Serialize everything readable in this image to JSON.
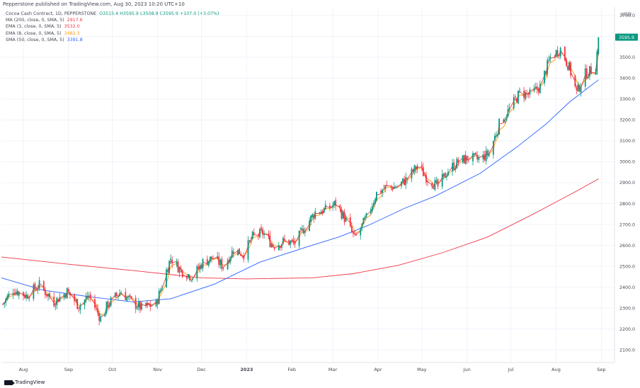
{
  "header": {
    "published": "Pepperstone published on TradingView.com, Aug 30, 2023 10:20 UTC+10"
  },
  "symbol": {
    "name": "Cocoa Cash Contract, 1D, PEPPERSTONE",
    "open": "O3515.4",
    "high": "H3595.9",
    "low": "L3508.9",
    "close": "C3595.9",
    "change": "+107.0 (+3.07%)"
  },
  "indicators": [
    {
      "label": "MA (200, close, 0, SMA, 5)",
      "value": "2917.6",
      "color": "#f23645"
    },
    {
      "label": "EMA (3, close, 0, SMA, 5)",
      "value": "3532.0",
      "color": "#f23645"
    },
    {
      "label": "EMA (8, close, 0, SMA, 5)",
      "value": "3482.3",
      "color": "#ff9800"
    },
    {
      "label": "SMA (50, close, 0, SMA, 5)",
      "value": "3391.8",
      "color": "#2962ff"
    }
  ],
  "footer": {
    "brand": "TradingView"
  },
  "chart_data": {
    "type": "candlestick",
    "currency": "USD",
    "last_price_label": "3595.9",
    "up_color": "#089981",
    "down_color": "#f23645",
    "y_ticks": [
      2100,
      2200,
      2300,
      2400,
      2500,
      2600,
      2700,
      2800,
      2900,
      3000,
      3100,
      3200,
      3300,
      3400,
      3500,
      3600,
      3700
    ],
    "y_tick_labels": [
      "2100.0",
      "2200.0",
      "2300.0",
      "2400.0",
      "2500.0",
      "2600.0",
      "2700.0",
      "2800.0",
      "2900.0",
      "3000.0",
      "3100.0",
      "3200.0",
      "3300.0",
      "3400.0",
      "3500.0",
      "3600.0",
      "3700.0"
    ],
    "ylim": [
      2040,
      3740
    ],
    "x_ticks": [
      {
        "label": "Aug",
        "date": "2022-08-01"
      },
      {
        "label": "Sep",
        "date": "2022-09-01"
      },
      {
        "label": "Oct",
        "date": "2022-10-01"
      },
      {
        "label": "Nov",
        "date": "2022-11-01"
      },
      {
        "label": "Dec",
        "date": "2022-12-01"
      },
      {
        "label": "2023",
        "date": "2023-01-01"
      },
      {
        "label": "Feb",
        "date": "2023-02-01"
      },
      {
        "label": "Mar",
        "date": "2023-03-01"
      },
      {
        "label": "Apr",
        "date": "2023-04-01"
      },
      {
        "label": "May",
        "date": "2023-05-01"
      },
      {
        "label": "Jun",
        "date": "2023-06-01"
      },
      {
        "label": "Jul",
        "date": "2023-07-01"
      },
      {
        "label": "Aug",
        "date": "2023-08-01"
      },
      {
        "label": "Sep",
        "date": "2023-09-01"
      }
    ],
    "xlim": [
      "2022-07-17",
      "2023-09-10"
    ],
    "close_path": [
      [
        "2022-07-18",
        2320
      ],
      [
        "2022-07-25",
        2390
      ],
      [
        "2022-08-03",
        2360
      ],
      [
        "2022-08-12",
        2410
      ],
      [
        "2022-08-22",
        2330
      ],
      [
        "2022-08-31",
        2380
      ],
      [
        "2022-09-08",
        2310
      ],
      [
        "2022-09-15",
        2360
      ],
      [
        "2022-09-23",
        2250
      ],
      [
        "2022-09-28",
        2320
      ],
      [
        "2022-10-07",
        2380
      ],
      [
        "2022-10-14",
        2330
      ],
      [
        "2022-10-21",
        2300
      ],
      [
        "2022-10-31",
        2320
      ],
      [
        "2022-11-07",
        2480
      ],
      [
        "2022-11-10",
        2540
      ],
      [
        "2022-11-17",
        2480
      ],
      [
        "2022-11-25",
        2450
      ],
      [
        "2022-12-02",
        2520
      ],
      [
        "2022-12-09",
        2540
      ],
      [
        "2022-12-16",
        2500
      ],
      [
        "2022-12-23",
        2580
      ],
      [
        "2022-12-30",
        2560
      ],
      [
        "2023-01-05",
        2640
      ],
      [
        "2023-01-12",
        2660
      ],
      [
        "2023-01-19",
        2600
      ],
      [
        "2023-01-27",
        2620
      ],
      [
        "2023-02-03",
        2610
      ],
      [
        "2023-02-10",
        2690
      ],
      [
        "2023-02-17",
        2760
      ],
      [
        "2023-02-24",
        2770
      ],
      [
        "2023-03-03",
        2800
      ],
      [
        "2023-03-10",
        2720
      ],
      [
        "2023-03-16",
        2630
      ],
      [
        "2023-03-24",
        2730
      ],
      [
        "2023-03-31",
        2850
      ],
      [
        "2023-04-07",
        2880
      ],
      [
        "2023-04-14",
        2880
      ],
      [
        "2023-04-21",
        2920
      ],
      [
        "2023-04-28",
        2980
      ],
      [
        "2023-05-05",
        2920
      ],
      [
        "2023-05-12",
        2880
      ],
      [
        "2023-05-19",
        2960
      ],
      [
        "2023-05-26",
        3000
      ],
      [
        "2023-06-02",
        3020
      ],
      [
        "2023-06-09",
        3010
      ],
      [
        "2023-06-16",
        3040
      ],
      [
        "2023-06-23",
        3180
      ],
      [
        "2023-06-30",
        3250
      ],
      [
        "2023-07-07",
        3330
      ],
      [
        "2023-07-14",
        3320
      ],
      [
        "2023-07-21",
        3360
      ],
      [
        "2023-07-28",
        3500
      ],
      [
        "2023-08-04",
        3540
      ],
      [
        "2023-08-10",
        3450
      ],
      [
        "2023-08-15",
        3330
      ],
      [
        "2023-08-21",
        3420
      ],
      [
        "2023-08-28",
        3450
      ],
      [
        "2023-08-30",
        3596
      ]
    ],
    "series": [
      {
        "name": "MA (200, close, 0, SMA, 5)",
        "color": "#f23645",
        "points": [
          [
            "2022-07-17",
            2545
          ],
          [
            "2022-09-01",
            2510
          ],
          [
            "2022-10-15",
            2480
          ],
          [
            "2022-12-01",
            2445
          ],
          [
            "2023-01-01",
            2440
          ],
          [
            "2023-02-15",
            2445
          ],
          [
            "2023-03-15",
            2465
          ],
          [
            "2023-04-15",
            2505
          ],
          [
            "2023-05-15",
            2565
          ],
          [
            "2023-06-15",
            2640
          ],
          [
            "2023-07-15",
            2745
          ],
          [
            "2023-08-15",
            2860
          ],
          [
            "2023-08-30",
            2918
          ]
        ]
      },
      {
        "name": "SMA (50, close, 0, SMA, 5)",
        "color": "#2962ff",
        "points": [
          [
            "2022-07-17",
            2445
          ],
          [
            "2022-08-15",
            2385
          ],
          [
            "2022-09-15",
            2355
          ],
          [
            "2022-10-15",
            2330
          ],
          [
            "2022-11-10",
            2345
          ],
          [
            "2022-12-10",
            2415
          ],
          [
            "2023-01-10",
            2520
          ],
          [
            "2023-02-10",
            2590
          ],
          [
            "2023-03-05",
            2640
          ],
          [
            "2023-03-25",
            2695
          ],
          [
            "2023-04-20",
            2780
          ],
          [
            "2023-05-10",
            2835
          ],
          [
            "2023-06-10",
            2945
          ],
          [
            "2023-07-05",
            3070
          ],
          [
            "2023-07-25",
            3180
          ],
          [
            "2023-08-10",
            3285
          ],
          [
            "2023-08-30",
            3392
          ]
        ]
      },
      {
        "name": "EMA (8, close, 0, SMA, 5)",
        "color": "#ff9800",
        "smooth": 4
      },
      {
        "name": "EMA (3, close, 0, SMA, 5)",
        "color": "#f23645",
        "smooth": 2
      }
    ]
  }
}
